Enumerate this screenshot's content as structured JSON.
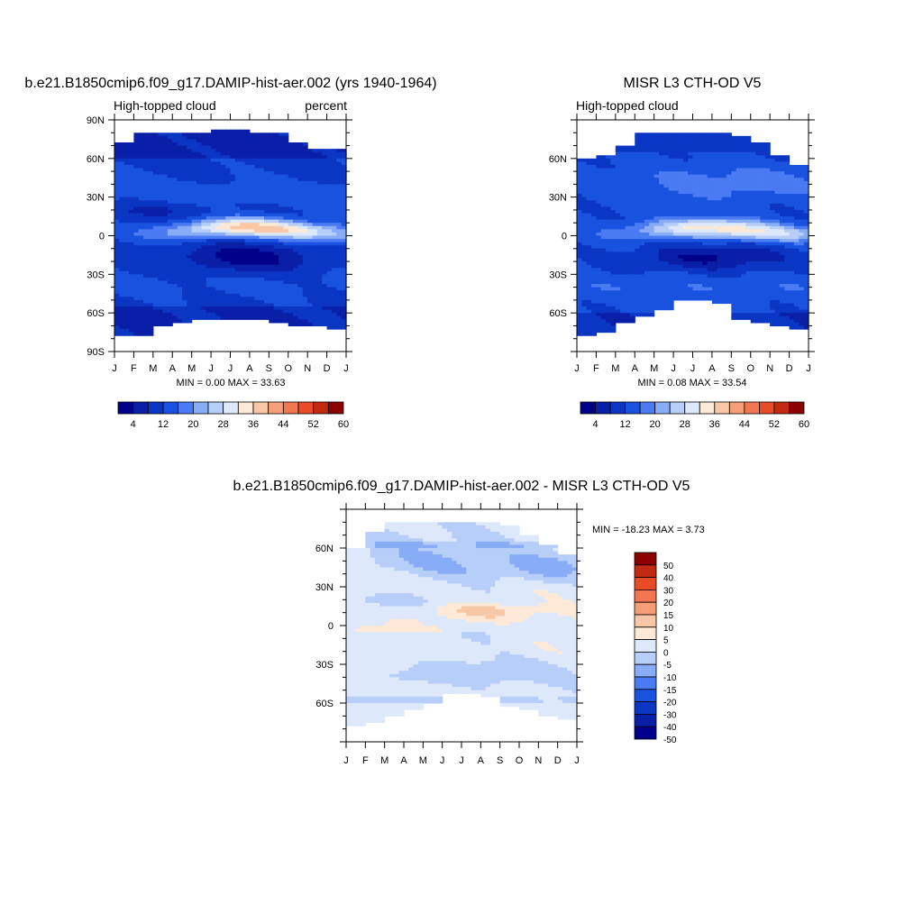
{
  "palette": {
    "abs": [
      "#02008b",
      "#0a1fa8",
      "#0b36c4",
      "#1a52e0",
      "#4a7bf2",
      "#88acf5",
      "#b6cef8",
      "#dde9fb",
      "#fde9d6",
      "#f8c7a5",
      "#f59f79",
      "#f27650",
      "#e84b27",
      "#c12a11",
      "#8b0000"
    ],
    "diff": [
      "#02008b",
      "#0a1fa8",
      "#0b36c4",
      "#1a52e0",
      "#4a7bf2",
      "#88acf5",
      "#b6cef8",
      "#dde9fb",
      "#fde9d6",
      "#f8c7a5",
      "#f59f79",
      "#f27650",
      "#e84b27",
      "#c12a11",
      "#8b0000"
    ]
  },
  "months": [
    "J",
    "F",
    "M",
    "A",
    "M",
    "J",
    "J",
    "A",
    "S",
    "O",
    "N",
    "D",
    "J"
  ],
  "chart_data": [
    {
      "type": "heatmap",
      "title": "b.e21.B1850cmip6.f09_g17.DAMIP-hist-aer.002 (yrs 1940-1964)",
      "left_label": "High-topped cloud",
      "right_label": "percent",
      "y_ticks": [
        "90N",
        "60N",
        "30N",
        "0",
        "30S",
        "60S",
        "90S"
      ],
      "ylim": [
        -90,
        90
      ],
      "min_max": "MIN =   0.00 MAX =  33.63",
      "colorbar_labels": [
        "4",
        "12",
        "20",
        "28",
        "36",
        "44",
        "52",
        "60"
      ],
      "colorbar_levels": [
        0,
        4,
        8,
        12,
        16,
        20,
        24,
        28,
        32,
        36,
        40,
        44,
        48,
        52,
        56,
        60
      ],
      "model": "m1"
    },
    {
      "type": "heatmap",
      "title": "MISR L3 CTH-OD V5",
      "left_label": "High-topped cloud",
      "right_label": "",
      "y_ticks": [
        "",
        "60N",
        "30N",
        "0",
        "30S",
        "60S",
        ""
      ],
      "ylim": [
        -90,
        90
      ],
      "min_max": "MIN =   0.08 MAX =  33.54",
      "colorbar_labels": [
        "4",
        "12",
        "20",
        "28",
        "36",
        "44",
        "52",
        "60"
      ],
      "colorbar_levels": [
        0,
        4,
        8,
        12,
        16,
        20,
        24,
        28,
        32,
        36,
        40,
        44,
        48,
        52,
        56,
        60
      ],
      "model": "m2"
    },
    {
      "type": "heatmap",
      "title": "b.e21.B1850cmip6.f09_g17.DAMIP-hist-aer.002 - MISR L3 CTH-OD V5",
      "left_label": "",
      "right_label": "",
      "y_ticks": [
        "60N",
        "30N",
        "0",
        "30S",
        "60S"
      ],
      "ylim": [
        -90,
        90
      ],
      "min_max": "MIN = -18.23 MAX =   3.73",
      "colorbar_labels": [
        "50",
        "40",
        "30",
        "20",
        "15",
        "10",
        "5",
        "0",
        "-5",
        "-10",
        "-15",
        "-20",
        "-30",
        "-40",
        "-50"
      ],
      "model": "diff"
    }
  ]
}
